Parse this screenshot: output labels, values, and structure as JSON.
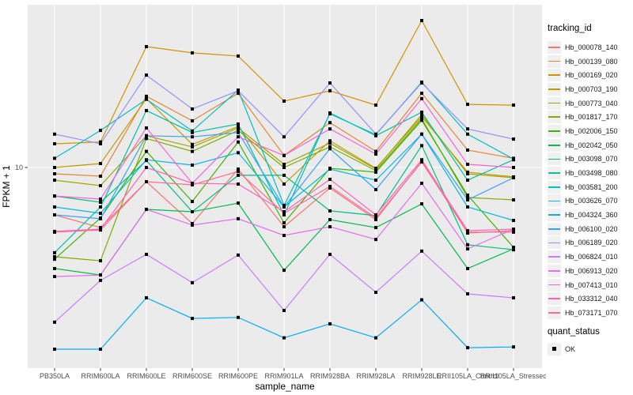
{
  "chart_data": {
    "type": "line",
    "title": "",
    "xlabel": "sample_name",
    "ylabel": "FPKM + 1",
    "categories": [
      "PB350LA",
      "RRIM600LA",
      "RRIM600LE",
      "RRIM600SE",
      "RRIM600PE",
      "RRIM901LA",
      "RRIM928BA",
      "RRIM928LA",
      "RRIM928LE",
      "RRII105LA_Control",
      "RRII105LA_Stressed"
    ],
    "y_axis": {
      "scale": "log10",
      "tick_labels": [
        "10"
      ],
      "tick_values": [
        10
      ],
      "log10_range": [
        -0.0763,
        1.8729
      ],
      "grid_horizontal_at": [
        10
      ]
    },
    "x_axis": {
      "grid_vertical": "one line per category"
    },
    "point_marker": {
      "shape": "square",
      "color": "#000000",
      "size": 4
    },
    "legend": {
      "title": "tracking_id",
      "position": "right"
    },
    "quant_legend": {
      "title": "quant_status",
      "items": [
        {
          "label": "OK",
          "marker": "black-square"
        }
      ]
    },
    "series": [
      {
        "name": "Hb_000078_140",
        "color": "#F8766D",
        "values": [
          5.57,
          4.76,
          8.39,
          5.0,
          9.81,
          4.81,
          7.76,
          5.25,
          10.8,
          4.45,
          4.58
        ]
      },
      {
        "name": "Hb_000139_080",
        "color": "#EA8331",
        "values": [
          9.25,
          8.98,
          24.1,
          17.8,
          25.0,
          11.6,
          17.4,
          12.2,
          25.0,
          12.4,
          11.2
        ]
      },
      {
        "name": "Hb_000169_020",
        "color": "#D89000",
        "values": [
          13.4,
          13.7,
          44.5,
          41.2,
          39.6,
          22.7,
          25.8,
          21.6,
          61.4,
          21.8,
          21.6
        ]
      },
      {
        "name": "Hb_000703_190",
        "color": "#C09B00",
        "values": [
          10.0,
          10.5,
          23.4,
          13.3,
          16.6,
          8.15,
          13.9,
          9.9,
          18.7,
          9.44,
          8.9
        ]
      },
      {
        "name": "Hb_000773_040",
        "color": "#A3A500",
        "values": [
          8.55,
          7.99,
          14.8,
          12.9,
          16.3,
          10.4,
          13.5,
          9.81,
          19.2,
          9.25,
          8.81
        ]
      },
      {
        "name": "Hb_001817_170",
        "color": "#7CAE00",
        "values": [
          3.32,
          3.16,
          14.3,
          12.2,
          15.8,
          10.0,
          12.9,
          9.62,
          18.3,
          6.9,
          6.7
        ]
      },
      {
        "name": "Hb_002006_150",
        "color": "#39B600",
        "values": [
          3.22,
          5.36,
          12.2,
          6.57,
          13.7,
          5.05,
          9.9,
          9.44,
          17.9,
          7.1,
          3.73
        ]
      },
      {
        "name": "Hb_002042_050",
        "color": "#00BB4E",
        "values": [
          2.87,
          2.65,
          5.96,
          5.79,
          6.44,
          2.81,
          5.25,
          4.76,
          6.38,
          2.87,
          3.66
        ]
      },
      {
        "name": "Hb_003098_070",
        "color": "#00BF7D",
        "values": [
          7.03,
          6.51,
          10.9,
          5.79,
          9.08,
          9.08,
          5.85,
          5.52,
          13.1,
          3.85,
          3.62
        ]
      },
      {
        "name": "Hb_003498_080",
        "color": "#00C1A3",
        "values": [
          3.49,
          6.14,
          20.2,
          15.4,
          17.1,
          5.57,
          19.6,
          14.8,
          19.8,
          8.55,
          11.0
        ]
      },
      {
        "name": "Hb_003581_200",
        "color": "#00BFC4",
        "values": [
          11.2,
          15.8,
          23.2,
          15.7,
          26.0,
          6.26,
          19.4,
          15.0,
          28.7,
          15.1,
          11.1
        ]
      },
      {
        "name": "Hb_003626_070",
        "color": "#00BAE0",
        "values": [
          6.14,
          5.68,
          11.0,
          10.3,
          12.0,
          6.14,
          9.81,
          8.55,
          15.1,
          6.14,
          5.2
        ]
      },
      {
        "name": "Hb_004324_360",
        "color": "#00B0F6",
        "values": [
          1.06,
          1.06,
          2.0,
          1.55,
          1.57,
          1.22,
          1.45,
          1.22,
          1.95,
          1.08,
          1.09
        ]
      },
      {
        "name": "Hb_006100_020",
        "color": "#35A2FF",
        "values": [
          5.57,
          5.31,
          14.8,
          14.6,
          15.4,
          6.14,
          12.6,
          7.61,
          15.1,
          6.7,
          8.81
        ]
      },
      {
        "name": "Hb_006189_020",
        "color": "#9590FF",
        "values": [
          15.1,
          13.4,
          31.3,
          20.6,
          25.8,
          14.6,
          28.4,
          15.1,
          28.4,
          16.1,
          14.2
        ]
      },
      {
        "name": "Hb_006824_010",
        "color": "#C77CFF",
        "values": [
          1.48,
          2.48,
          3.42,
          2.41,
          3.39,
          1.71,
          3.42,
          2.14,
          3.56,
          2.1,
          2.0
        ]
      },
      {
        "name": "Hb_006913_020",
        "color": "#E76BF3",
        "values": [
          2.6,
          2.65,
          5.96,
          4.91,
          5.31,
          4.32,
          4.81,
          4.11,
          8.23,
          3.66,
          4.67
        ]
      },
      {
        "name": "Hb_007413_010",
        "color": "#FA62DB",
        "values": [
          7.03,
          6.77,
          16.3,
          8.23,
          14.6,
          11.6,
          16.1,
          11.8,
          23.4,
          10.4,
          10.0
        ]
      },
      {
        "name": "Hb_033312_040",
        "color": "#FF62BC",
        "values": [
          4.54,
          4.67,
          10.0,
          8.23,
          8.15,
          5.79,
          8.64,
          5.57,
          11.0,
          4.58,
          4.67
        ]
      },
      {
        "name": "Hb_073171_070",
        "color": "#FF6A98",
        "values": [
          4.5,
          4.62,
          8.39,
          8.07,
          9.52,
          5.68,
          7.91,
          5.36,
          10.7,
          4.5,
          4.5
        ]
      }
    ]
  },
  "style_colors": {
    "panel_bg": "#EBEBEB",
    "grid_line": "#FFFFFF",
    "axis_text": "#4D4D4D",
    "title_text": "#000000",
    "tick_mark": "#333333",
    "legend_key_bg": "#F0F0F0",
    "point": "#000000"
  }
}
